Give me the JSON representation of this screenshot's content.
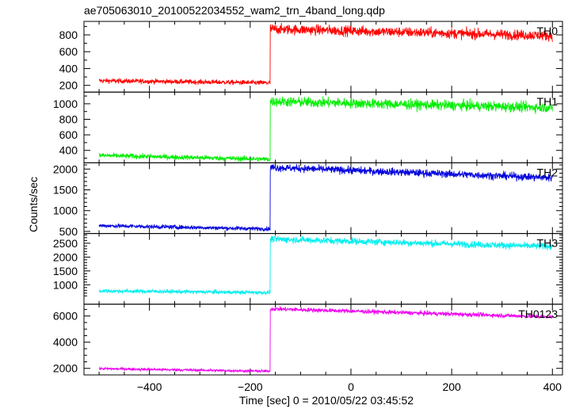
{
  "title": "ae705063010_20100522034552_wam2_trn_4band_long.qdp",
  "ylabel": "Counts/sec",
  "xlabel": "Time [sec] 0 = 2010/05/22 03:45:52",
  "chart_data": {
    "type": "line",
    "title": "ae705063010_20100522034552_wam2_trn_4band_long.qdp",
    "xlabel": "Time [sec] 0 = 2010/05/22 03:45:52",
    "ylabel": "Counts/sec",
    "xlim": [
      -530,
      420
    ],
    "x_ticks": [
      -400,
      -200,
      0,
      200,
      400
    ],
    "x_tick_labels": [
      "−400",
      "−200",
      "0",
      "200",
      "400"
    ],
    "grid": false,
    "panels": [
      {
        "name": "TH0",
        "color": "#ff0000",
        "ylim": [
          120,
          960
        ],
        "yticks": [
          200,
          400,
          600,
          800
        ],
        "yticks_minor": [
          300,
          500,
          700,
          900
        ],
        "x_start": -500,
        "x_step": -160,
        "x_end": 400,
        "pre_start": 255,
        "pre_end": 230,
        "pre_noise": 14,
        "post_start": 870,
        "post_end": 790,
        "post_noise": 30
      },
      {
        "name": "TH1",
        "color": "#00ee00",
        "ylim": [
          240,
          1150
        ],
        "yticks": [
          400,
          600,
          800,
          1000
        ],
        "yticks_minor": [
          300,
          500,
          700,
          900,
          1100
        ],
        "x_start": -500,
        "x_step": -160,
        "x_end": 400,
        "pre_start": 335,
        "pre_end": 285,
        "pre_noise": 16,
        "post_start": 1030,
        "post_end": 950,
        "post_noise": 32
      },
      {
        "name": "TH2",
        "color": "#0000dd",
        "ylim": [
          450,
          2150
        ],
        "yticks": [
          500,
          1000,
          1500,
          2000
        ],
        "yticks_minor": [
          600,
          700,
          800,
          900,
          1100,
          1200,
          1300,
          1400,
          1600,
          1700,
          1800,
          1900,
          2100
        ],
        "x_start": -500,
        "x_step": -160,
        "x_end": 400,
        "pre_start": 640,
        "pre_end": 560,
        "pre_noise": 25,
        "post_start": 2040,
        "post_end": 1790,
        "post_noise": 45
      },
      {
        "name": "TH3",
        "color": "#00eeee",
        "ylim": [
          300,
          2850
        ],
        "yticks": [
          1000,
          1500,
          2000,
          2500
        ],
        "yticks_minor": [
          600,
          700,
          800,
          900,
          1100,
          1200,
          1300,
          1400,
          1600,
          1700,
          1800,
          1900,
          2100,
          2200,
          2300,
          2400,
          2600,
          2700,
          2800
        ],
        "x_start": -500,
        "x_step": -160,
        "x_end": 400,
        "pre_start": 780,
        "pre_end": 720,
        "pre_noise": 35,
        "post_start": 2650,
        "post_end": 2380,
        "post_noise": 60
      },
      {
        "name": "TH0123",
        "color": "#ee00ee",
        "ylim": [
          1500,
          6900
        ],
        "yticks": [
          2000,
          4000,
          6000
        ],
        "yticks_minor": [
          2500,
          3000,
          3500,
          4500,
          5000,
          5500,
          6500
        ],
        "x_start": -500,
        "x_step": -160,
        "x_end": 400,
        "pre_start": 1980,
        "pre_end": 1780,
        "pre_noise": 50,
        "post_start": 6550,
        "post_end": 5930,
        "post_noise": 80
      }
    ]
  }
}
